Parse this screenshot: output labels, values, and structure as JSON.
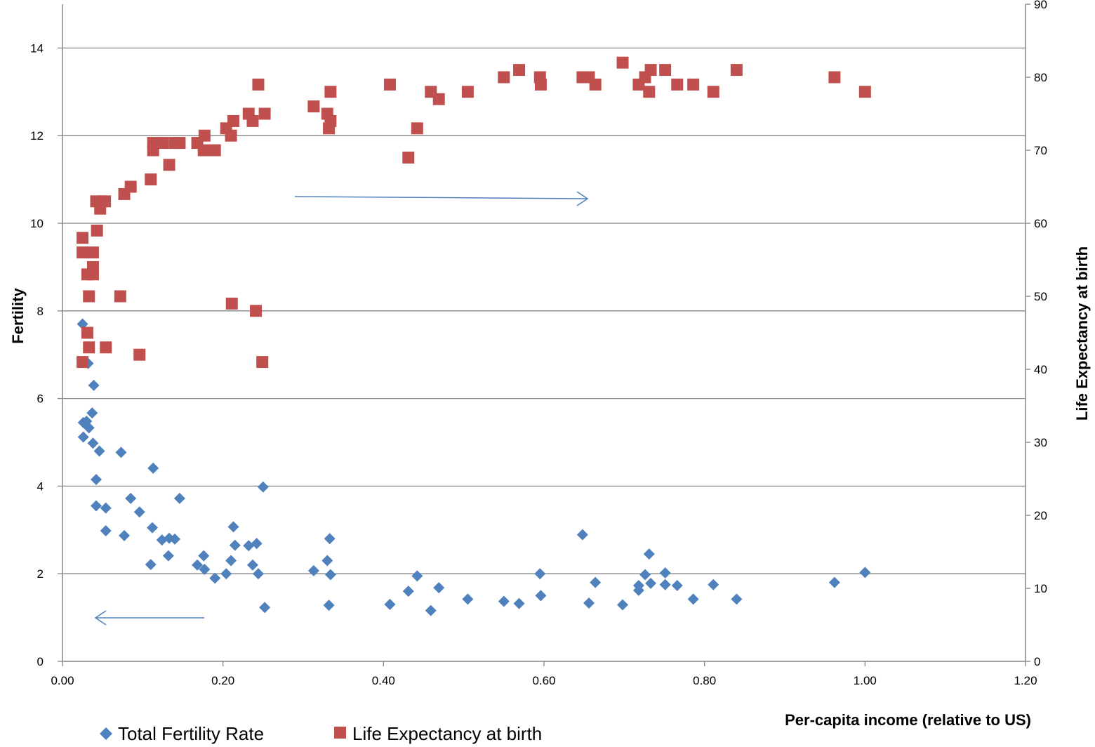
{
  "chart_data": {
    "type": "scatter",
    "xlabel": "Per-capita income (relative to US)",
    "ylabel": "Fertility",
    "y2label": "Life Expectancy at birth",
    "xlim": [
      0,
      1.2
    ],
    "ylim": [
      0,
      15
    ],
    "y2lim": [
      0,
      90
    ],
    "x_ticks": [
      "0.00",
      "0.20",
      "0.40",
      "0.60",
      "0.80",
      "1.00",
      "1.20"
    ],
    "y_ticks": [
      "0",
      "2",
      "4",
      "6",
      "8",
      "10",
      "12",
      "14"
    ],
    "y2_ticks": [
      "0",
      "10",
      "20",
      "30",
      "40",
      "50",
      "60",
      "70",
      "80",
      "90"
    ],
    "grid": true,
    "legend_position": "bottom-left",
    "series": [
      {
        "name": "Total Fertility Rate",
        "axis": "left",
        "marker": "diamond",
        "color": "#4f81bd",
        "points": [
          [
            0.025,
            7.7
          ],
          [
            0.032,
            6.8
          ],
          [
            0.039,
            6.3
          ],
          [
            0.037,
            5.67
          ],
          [
            0.026,
            5.45
          ],
          [
            0.03,
            5.48
          ],
          [
            0.033,
            5.33
          ],
          [
            0.026,
            5.12
          ],
          [
            0.038,
            4.98
          ],
          [
            0.046,
            4.8
          ],
          [
            0.073,
            4.77
          ],
          [
            0.113,
            4.41
          ],
          [
            0.042,
            4.15
          ],
          [
            0.25,
            3.98
          ],
          [
            0.085,
            3.72
          ],
          [
            0.146,
            3.72
          ],
          [
            0.042,
            3.55
          ],
          [
            0.054,
            3.5
          ],
          [
            0.096,
            3.41
          ],
          [
            0.112,
            3.05
          ],
          [
            0.213,
            3.07
          ],
          [
            0.054,
            2.98
          ],
          [
            0.077,
            2.87
          ],
          [
            0.124,
            2.77
          ],
          [
            0.133,
            2.81
          ],
          [
            0.14,
            2.79
          ],
          [
            0.215,
            2.65
          ],
          [
            0.232,
            2.64
          ],
          [
            0.242,
            2.69
          ],
          [
            0.333,
            2.8
          ],
          [
            0.648,
            2.89
          ],
          [
            0.132,
            2.41
          ],
          [
            0.176,
            2.41
          ],
          [
            0.11,
            2.21
          ],
          [
            0.168,
            2.2
          ],
          [
            0.177,
            2.1
          ],
          [
            0.21,
            2.3
          ],
          [
            0.237,
            2.2
          ],
          [
            0.33,
            2.3
          ],
          [
            0.204,
            2.0
          ],
          [
            0.244,
            2.0
          ],
          [
            0.19,
            1.9
          ],
          [
            0.313,
            2.07
          ],
          [
            0.334,
            1.98
          ],
          [
            0.442,
            1.95
          ],
          [
            0.595,
            2.0
          ],
          [
            0.731,
            2.45
          ],
          [
            0.726,
            1.98
          ],
          [
            0.751,
            2.02
          ],
          [
            1.0,
            2.03
          ],
          [
            0.431,
            1.6
          ],
          [
            0.469,
            1.68
          ],
          [
            0.664,
            1.8
          ],
          [
            0.718,
            1.73
          ],
          [
            0.718,
            1.62
          ],
          [
            0.733,
            1.78
          ],
          [
            0.751,
            1.75
          ],
          [
            0.766,
            1.73
          ],
          [
            0.811,
            1.75
          ],
          [
            0.962,
            1.8
          ],
          [
            0.505,
            1.42
          ],
          [
            0.55,
            1.37
          ],
          [
            0.569,
            1.32
          ],
          [
            0.596,
            1.5
          ],
          [
            0.656,
            1.33
          ],
          [
            0.786,
            1.42
          ],
          [
            0.84,
            1.42
          ],
          [
            0.408,
            1.3
          ],
          [
            0.332,
            1.28
          ],
          [
            0.252,
            1.23
          ],
          [
            0.459,
            1.16
          ],
          [
            0.698,
            1.29
          ]
        ]
      },
      {
        "name": "Life Expectancy at birth",
        "axis": "right",
        "marker": "square",
        "color": "#c0504d",
        "points": [
          [
            0.025,
            41
          ],
          [
            0.031,
            45
          ],
          [
            0.033,
            43
          ],
          [
            0.033,
            50
          ],
          [
            0.031,
            53
          ],
          [
            0.038,
            53
          ],
          [
            0.038,
            54
          ],
          [
            0.025,
            56
          ],
          [
            0.038,
            56
          ],
          [
            0.025,
            58
          ],
          [
            0.043,
            59
          ],
          [
            0.072,
            50
          ],
          [
            0.054,
            43
          ],
          [
            0.096,
            42
          ],
          [
            0.211,
            49
          ],
          [
            0.241,
            48
          ],
          [
            0.249,
            41
          ],
          [
            0.042,
            63
          ],
          [
            0.047,
            62
          ],
          [
            0.053,
            63
          ],
          [
            0.077,
            64
          ],
          [
            0.085,
            65
          ],
          [
            0.11,
            66
          ],
          [
            0.133,
            68
          ],
          [
            0.113,
            70
          ],
          [
            0.113,
            71
          ],
          [
            0.125,
            71
          ],
          [
            0.14,
            71
          ],
          [
            0.146,
            71
          ],
          [
            0.168,
            71
          ],
          [
            0.176,
            70
          ],
          [
            0.19,
            70
          ],
          [
            0.177,
            72
          ],
          [
            0.204,
            73
          ],
          [
            0.21,
            72
          ],
          [
            0.213,
            74
          ],
          [
            0.232,
            75
          ],
          [
            0.237,
            74
          ],
          [
            0.252,
            75
          ],
          [
            0.244,
            79
          ],
          [
            0.313,
            76
          ],
          [
            0.33,
            75
          ],
          [
            0.334,
            74
          ],
          [
            0.334,
            78
          ],
          [
            0.332,
            73
          ],
          [
            0.408,
            79
          ],
          [
            0.431,
            69
          ],
          [
            0.442,
            73
          ],
          [
            0.459,
            78
          ],
          [
            0.469,
            77
          ],
          [
            0.505,
            78
          ],
          [
            0.55,
            80
          ],
          [
            0.569,
            81
          ],
          [
            0.595,
            80
          ],
          [
            0.596,
            79
          ],
          [
            0.648,
            80
          ],
          [
            0.656,
            80
          ],
          [
            0.664,
            79
          ],
          [
            0.698,
            82
          ],
          [
            0.718,
            79
          ],
          [
            0.726,
            80
          ],
          [
            0.731,
            78
          ],
          [
            0.733,
            81
          ],
          [
            0.751,
            81
          ],
          [
            0.766,
            79
          ],
          [
            0.786,
            79
          ],
          [
            0.811,
            78
          ],
          [
            0.84,
            81
          ],
          [
            0.962,
            80
          ],
          [
            1.0,
            78
          ]
        ]
      }
    ],
    "annotations": [
      {
        "type": "arrow",
        "direction": "right",
        "points_to": "right axis"
      },
      {
        "type": "arrow",
        "direction": "left",
        "points_to": "left axis"
      }
    ]
  }
}
